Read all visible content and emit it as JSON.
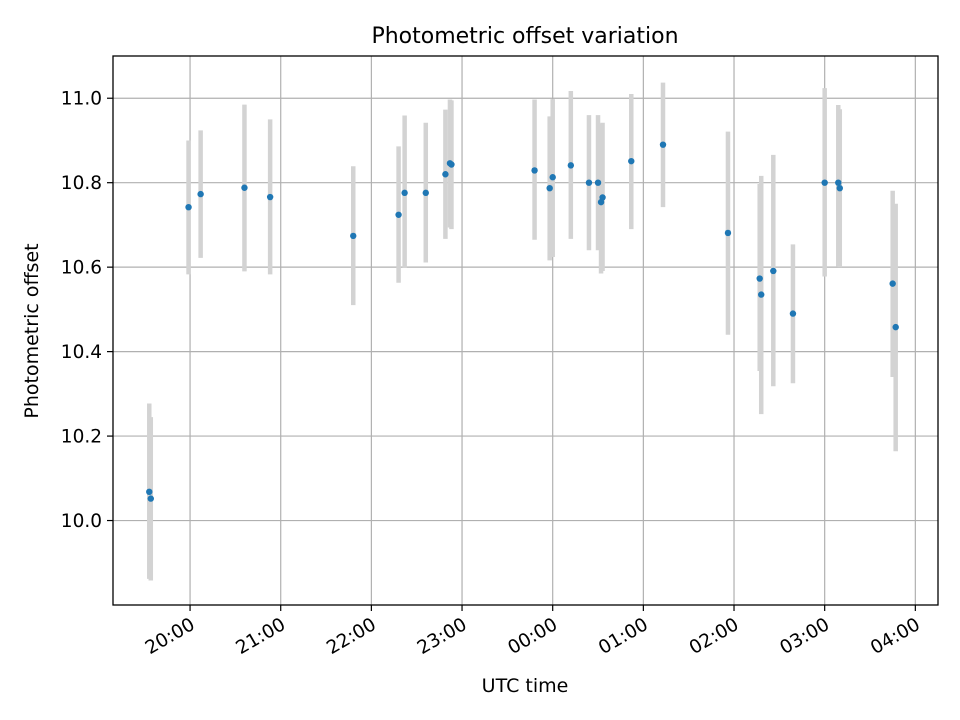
{
  "chart_data": {
    "type": "scatter",
    "title": "Photometric offset variation",
    "xlabel": "UTC time",
    "ylabel": "Photometric offset",
    "x_tick_labels": [
      "20:00",
      "21:00",
      "22:00",
      "23:00",
      "00:00",
      "01:00",
      "02:00",
      "03:00",
      "04:00"
    ],
    "x_tick_hours": [
      20,
      21,
      22,
      23,
      24,
      25,
      26,
      27,
      28
    ],
    "y_ticks": [
      10.0,
      10.2,
      10.4,
      10.6,
      10.8,
      11.0
    ],
    "y_tick_labels": [
      "10.0",
      "10.2",
      "10.4",
      "10.6",
      "10.8",
      "11.0"
    ],
    "xlim": [
      "19:09",
      "04:15"
    ],
    "ylim": [
      9.8,
      11.1
    ],
    "grid": true,
    "colors": {
      "marker": "#1f77b4",
      "errorbar": "#d3d3d3",
      "grid": "#b0b0b0"
    },
    "points": [
      {
        "t": "19:33",
        "y": 10.068,
        "lo": 9.862,
        "hi": 10.277
      },
      {
        "t": "19:34",
        "y": 10.052,
        "lo": 9.858,
        "hi": 10.245
      },
      {
        "t": "19:59",
        "y": 10.742,
        "lo": 10.583,
        "hi": 10.9
      },
      {
        "t": "20:07",
        "y": 10.773,
        "lo": 10.622,
        "hi": 10.924
      },
      {
        "t": "20:36",
        "y": 10.788,
        "lo": 10.59,
        "hi": 10.985
      },
      {
        "t": "20:53",
        "y": 10.766,
        "lo": 10.583,
        "hi": 10.95
      },
      {
        "t": "21:48",
        "y": 10.674,
        "lo": 10.51,
        "hi": 10.839
      },
      {
        "t": "22:18",
        "y": 10.724,
        "lo": 10.563,
        "hi": 10.886
      },
      {
        "t": "22:22",
        "y": 10.776,
        "lo": 10.598,
        "hi": 10.959
      },
      {
        "t": "22:36",
        "y": 10.776,
        "lo": 10.611,
        "hi": 10.942
      },
      {
        "t": "22:49",
        "y": 10.82,
        "lo": 10.667,
        "hi": 10.973
      },
      {
        "t": "22:52",
        "y": 10.846,
        "lo": 10.694,
        "hi": 10.997
      },
      {
        "t": "22:53",
        "y": 10.843,
        "lo": 10.69,
        "hi": 10.995
      },
      {
        "t": "23:48",
        "y": 10.829,
        "lo": 10.665,
        "hi": 10.997
      },
      {
        "t": "23:58",
        "y": 10.787,
        "lo": 10.616,
        "hi": 10.957
      },
      {
        "t": "24:00",
        "y": 10.813,
        "lo": 10.624,
        "hi": 10.998
      },
      {
        "t": "24:12",
        "y": 10.841,
        "lo": 10.667,
        "hi": 11.017
      },
      {
        "t": "24:24",
        "y": 10.8,
        "lo": 10.64,
        "hi": 10.96
      },
      {
        "t": "24:30",
        "y": 10.8,
        "lo": 10.64,
        "hi": 10.96
      },
      {
        "t": "24:32",
        "y": 10.754,
        "lo": 10.585,
        "hi": 10.94
      },
      {
        "t": "24:33",
        "y": 10.765,
        "lo": 10.591,
        "hi": 10.942
      },
      {
        "t": "24:52",
        "y": 10.851,
        "lo": 10.69,
        "hi": 11.01
      },
      {
        "t": "25:13",
        "y": 10.89,
        "lo": 10.742,
        "hi": 11.037
      },
      {
        "t": "25:56",
        "y": 10.681,
        "lo": 10.44,
        "hi": 10.921
      },
      {
        "t": "26:17",
        "y": 10.573,
        "lo": 10.354,
        "hi": 10.797
      },
      {
        "t": "26:18",
        "y": 10.535,
        "lo": 10.252,
        "hi": 10.816
      },
      {
        "t": "26:26",
        "y": 10.591,
        "lo": 10.318,
        "hi": 10.866
      },
      {
        "t": "26:39",
        "y": 10.49,
        "lo": 10.325,
        "hi": 10.654
      },
      {
        "t": "27:00",
        "y": 10.8,
        "lo": 10.578,
        "hi": 11.024
      },
      {
        "t": "27:09",
        "y": 10.8,
        "lo": 10.602,
        "hi": 10.984
      },
      {
        "t": "27:10",
        "y": 10.787,
        "lo": 10.6,
        "hi": 10.974
      },
      {
        "t": "27:45",
        "y": 10.561,
        "lo": 10.34,
        "hi": 10.781
      },
      {
        "t": "27:47",
        "y": 10.458,
        "lo": 10.164,
        "hi": 10.75
      }
    ]
  }
}
